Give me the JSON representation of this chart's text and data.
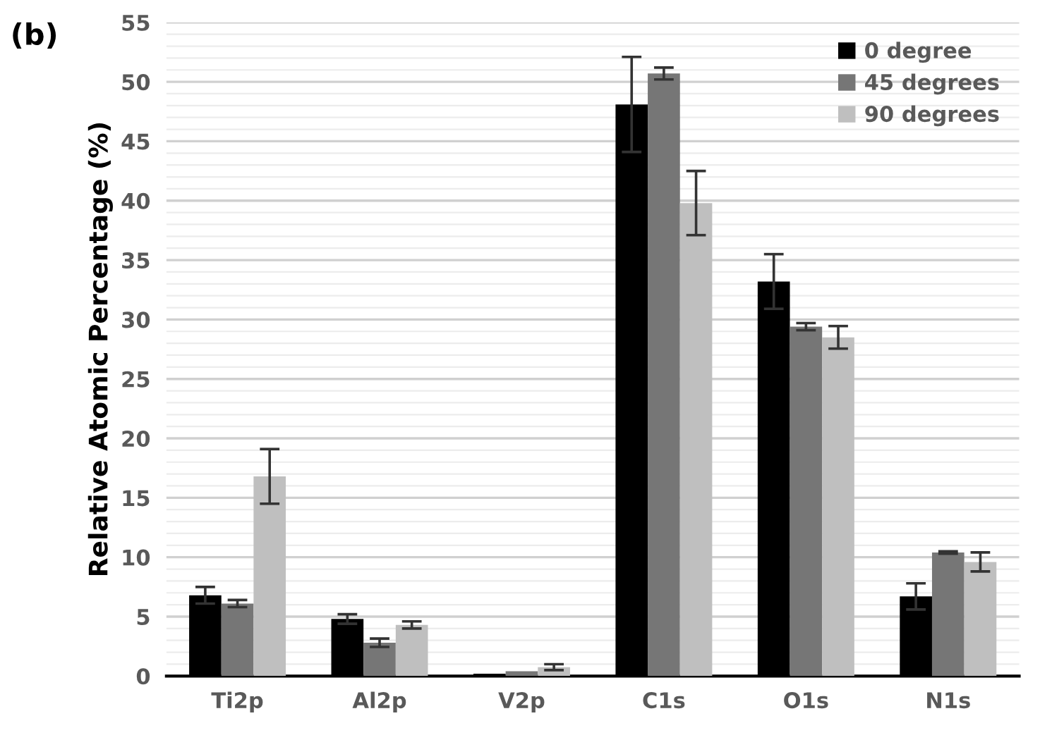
{
  "chart_data": {
    "type": "bar",
    "ylabel": "Relative Atomic Percentage (%)",
    "annotations": [
      "(b)"
    ],
    "categories": [
      "Ti2p",
      "Al2p",
      "V2p",
      "C1s",
      "O1s",
      "N1s"
    ],
    "series": [
      {
        "name": "0 degree",
        "color": "#000000",
        "values": [
          6.8,
          4.8,
          0.2,
          48.1,
          33.2,
          6.7
        ],
        "errors": [
          0.7,
          0.4,
          null,
          4.0,
          2.3,
          1.1
        ]
      },
      {
        "name": "45 degrees",
        "color": "#767676",
        "values": [
          6.1,
          2.8,
          0.4,
          50.7,
          29.4,
          10.4
        ],
        "errors": [
          0.3,
          0.35,
          null,
          0.5,
          0.3,
          0.1
        ]
      },
      {
        "name": "90 degrees",
        "color": "#bfbfbf",
        "values": [
          16.8,
          4.3,
          0.75,
          39.8,
          28.5,
          9.6
        ],
        "errors": [
          2.3,
          0.3,
          0.25,
          2.7,
          0.95,
          0.8
        ]
      }
    ],
    "ylim": [
      0,
      55
    ],
    "yticks": [
      0,
      5,
      10,
      15,
      20,
      25,
      30,
      35,
      40,
      45,
      50,
      55
    ],
    "grid": "y",
    "legend": "top right"
  }
}
